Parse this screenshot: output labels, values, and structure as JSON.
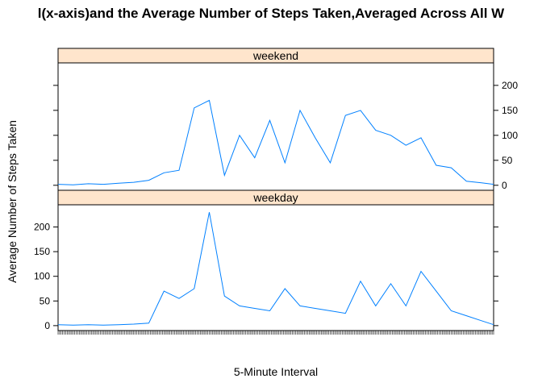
{
  "chart_data": {
    "type": "line",
    "title": "l(x-axis)and the Average Number of Steps      Taken,Averaged Across All W",
    "xlabel": "5-Minute Interval",
    "ylabel": "Average Number of Steps Taken",
    "ylim": [
      -10,
      245
    ],
    "yticks": [
      0,
      50,
      100,
      150,
      200
    ],
    "line_color": "#0080ff",
    "strip_color": "#ffe5cc",
    "panels": [
      {
        "name": "weekend",
        "x": [
          0,
          10,
          20,
          30,
          40,
          50,
          60,
          70,
          80,
          90,
          100,
          110,
          120,
          130,
          140,
          150,
          160,
          170,
          180,
          190,
          200,
          210,
          220,
          230,
          240,
          250,
          260,
          270,
          280,
          288
        ],
        "values": [
          2,
          1,
          3,
          2,
          4,
          6,
          10,
          25,
          30,
          155,
          170,
          20,
          100,
          55,
          130,
          45,
          150,
          95,
          45,
          140,
          150,
          110,
          100,
          80,
          95,
          40,
          35,
          8,
          5,
          2
        ]
      },
      {
        "name": "weekday",
        "x": [
          0,
          10,
          20,
          30,
          40,
          50,
          60,
          70,
          80,
          90,
          100,
          110,
          120,
          130,
          140,
          150,
          160,
          170,
          180,
          190,
          200,
          210,
          220,
          230,
          240,
          250,
          260,
          270,
          280,
          288
        ],
        "values": [
          2,
          1,
          2,
          1,
          2,
          3,
          5,
          70,
          55,
          75,
          230,
          60,
          40,
          35,
          30,
          75,
          40,
          35,
          30,
          25,
          90,
          40,
          85,
          40,
          110,
          70,
          30,
          20,
          10,
          2
        ]
      }
    ]
  }
}
